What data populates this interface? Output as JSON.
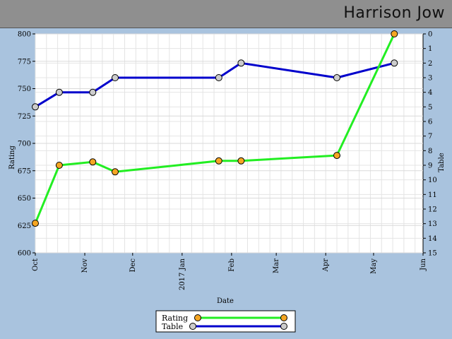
{
  "header": {
    "player_name": "Harrison Jow"
  },
  "chart_data": {
    "type": "line",
    "xlabel": "Date",
    "ylabel_left": "Rating",
    "ylabel_right": "Table",
    "x_ticks": [
      "Oct",
      "Nov",
      "Dec",
      "2017 Jan",
      "Feb",
      "Mar",
      "Apr",
      "May",
      "Jun"
    ],
    "x_tick_dates": [
      "2016-10-01",
      "2016-11-01",
      "2016-12-01",
      "2017-01-01",
      "2017-02-01",
      "2017-03-01",
      "2017-04-01",
      "2017-05-01",
      "2017-06-01"
    ],
    "y_left_ticks": [
      "600",
      "625",
      "650",
      "675",
      "700",
      "725",
      "750",
      "775",
      "800"
    ],
    "y_right_ticks": [
      "0",
      "1",
      "2",
      "3",
      "4",
      "5",
      "6",
      "7",
      "8",
      "9",
      "10",
      "11",
      "12",
      "13",
      "14",
      "15"
    ],
    "y_left_range": [
      600,
      800
    ],
    "y_right_range": [
      15,
      0
    ],
    "grid": true,
    "legend_position": "bottom-center",
    "series": [
      {
        "name": "Rating",
        "axis": "left",
        "color": "#22ee22",
        "marker_color": "#f5a623",
        "x": [
          "2016-10-01",
          "2016-10-16",
          "2016-11-06",
          "2016-11-20",
          "2017-01-24",
          "2017-02-07",
          "2017-04-08",
          "2017-05-14"
        ],
        "values": [
          627,
          680,
          683,
          674,
          684,
          684,
          689,
          800
        ]
      },
      {
        "name": "Table",
        "axis": "right",
        "color": "#0000cc",
        "marker_color": "#cccccc",
        "x": [
          "2016-10-01",
          "2016-10-16",
          "2016-11-06",
          "2016-11-20",
          "2017-01-24",
          "2017-02-07",
          "2017-04-08",
          "2017-05-14"
        ],
        "values": [
          5,
          4,
          4,
          3,
          3,
          2,
          3,
          2
        ]
      }
    ]
  }
}
